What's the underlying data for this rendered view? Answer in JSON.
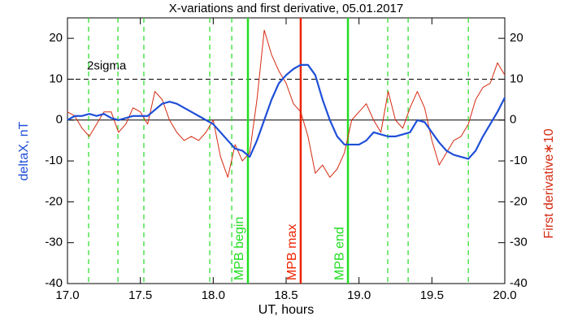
{
  "chart_data": {
    "type": "line",
    "title": "X-variations and first derivative, 05.01.2017",
    "xlabel": "UT, hours",
    "ylabel": "deltaX, nT",
    "y2label": "First derivative∗10",
    "xlim": [
      17.0,
      20.0
    ],
    "ylim": [
      -40,
      25
    ],
    "y2lim": [
      -40,
      25
    ],
    "xticks": [
      {
        "value": 17.0,
        "label": "17.0"
      },
      {
        "value": 17.5,
        "label": "17.5"
      },
      {
        "value": 18.0,
        "label": "18.0"
      },
      {
        "value": 18.5,
        "label": "18.5"
      },
      {
        "value": 19.0,
        "label": "19.0"
      },
      {
        "value": 19.5,
        "label": "19.5"
      },
      {
        "value": 20.0,
        "label": "20.0"
      }
    ],
    "yticks": [
      20,
      10,
      0,
      -10,
      -20,
      -30,
      -40
    ],
    "y2ticks": [
      20,
      10,
      0,
      -10,
      -20,
      -30,
      -40
    ],
    "x": [
      17.0,
      17.05,
      17.1,
      17.15,
      17.2,
      17.25,
      17.3,
      17.35,
      17.4,
      17.45,
      17.5,
      17.55,
      17.6,
      17.65,
      17.7,
      17.75,
      17.8,
      17.85,
      17.9,
      17.95,
      18.0,
      18.05,
      18.1,
      18.15,
      18.2,
      18.25,
      18.3,
      18.35,
      18.4,
      18.45,
      18.5,
      18.55,
      18.6,
      18.65,
      18.7,
      18.75,
      18.8,
      18.85,
      18.9,
      18.95,
      19.0,
      19.05,
      19.1,
      19.15,
      19.2,
      19.25,
      19.3,
      19.35,
      19.4,
      19.45,
      19.5,
      19.55,
      19.6,
      19.65,
      19.7,
      19.75,
      19.8,
      19.85,
      19.9,
      19.95,
      20.0
    ],
    "series": [
      {
        "name": "deltaX",
        "color": "#1f4fd8",
        "width": 2.2,
        "axis": "y",
        "values": [
          0,
          1,
          1,
          1.5,
          1,
          1.5,
          0.5,
          0,
          0.5,
          1,
          1,
          1,
          2.5,
          4,
          4.5,
          4,
          3,
          2,
          1,
          0,
          -1,
          -3,
          -5,
          -7,
          -7.5,
          -9,
          -5,
          0,
          5,
          9,
          11,
          12.5,
          13.5,
          13.5,
          11,
          5,
          0,
          -4,
          -6,
          -6,
          -6,
          -5,
          -3,
          -3.5,
          -4,
          -4,
          -3.5,
          -3,
          0,
          -0.5,
          -3,
          -5.5,
          -7.5,
          -8.5,
          -9,
          -9.5,
          -7.5,
          -4,
          -1,
          2,
          5.5
        ]
      },
      {
        "name": "derivative",
        "color": "#d42a10",
        "width": 1,
        "axis": "y2",
        "values": [
          2,
          1,
          -2,
          -4,
          -1,
          2,
          2,
          -3,
          -1,
          3,
          2,
          -1,
          7,
          5,
          0,
          -3,
          -5,
          -4,
          -5,
          -3,
          0,
          -9,
          -14,
          -6,
          -10,
          -8,
          5,
          22,
          16,
          12,
          9,
          4,
          2,
          -4,
          -13,
          -11,
          -14,
          -12,
          -8,
          0,
          2,
          4,
          0,
          -3,
          7,
          0,
          -2,
          3,
          7,
          3,
          -5,
          -11,
          -8,
          -5,
          -4,
          -1,
          5,
          8,
          9,
          14,
          11
        ]
      }
    ],
    "markers": [
      {
        "x": 17.145,
        "color": "#22dd22",
        "style": "dashed"
      },
      {
        "x": 17.346,
        "color": "#22dd22",
        "style": "dashed"
      },
      {
        "x": 17.524,
        "color": "#22dd22",
        "style": "dashed"
      },
      {
        "x": 17.976,
        "color": "#22dd22",
        "style": "dashed"
      },
      {
        "x": 18.127,
        "color": "#22dd22",
        "style": "dashed"
      },
      {
        "x": 18.238,
        "color": "#22dd22",
        "style": "solid",
        "label": "MPB begin"
      },
      {
        "x": 18.6,
        "color": "#ee2200",
        "style": "solid",
        "label": "MPB max"
      },
      {
        "x": 18.924,
        "color": "#22dd22",
        "style": "solid",
        "label": "MPB end"
      },
      {
        "x": 19.197,
        "color": "#22dd22",
        "style": "dashed"
      },
      {
        "x": 19.337,
        "color": "#22dd22",
        "style": "dashed"
      },
      {
        "x": 19.75,
        "color": "#22dd22",
        "style": "dashed"
      }
    ],
    "hlines": [
      {
        "y": 10,
        "style": "dashed",
        "label": "2sigma"
      },
      {
        "y": 0,
        "style": "solid"
      }
    ]
  }
}
